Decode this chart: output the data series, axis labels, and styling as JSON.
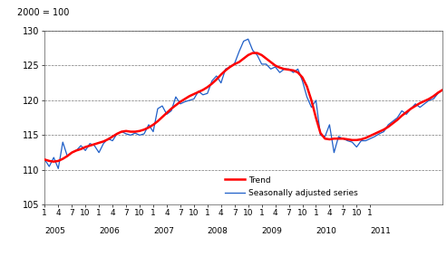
{
  "title": "2000 = 100",
  "ylim": [
    105,
    130
  ],
  "yticks": [
    105,
    110,
    115,
    120,
    125,
    130
  ],
  "trend_color": "#ff0000",
  "seasonal_color": "#1f5fc8",
  "trend_linewidth": 1.8,
  "seasonal_linewidth": 0.9,
  "legend_trend": "Trend",
  "legend_seasonal": "Seasonally adjusted series",
  "background_color": "#ffffff",
  "grid_color": "#555555",
  "trend": [
    111.5,
    111.3,
    111.2,
    111.3,
    111.6,
    112.0,
    112.5,
    112.8,
    113.0,
    113.3,
    113.5,
    113.7,
    113.9,
    114.1,
    114.4,
    114.8,
    115.2,
    115.5,
    115.6,
    115.5,
    115.5,
    115.6,
    115.8,
    116.1,
    116.5,
    117.0,
    117.6,
    118.2,
    118.8,
    119.3,
    119.8,
    120.2,
    120.6,
    120.9,
    121.2,
    121.5,
    121.9,
    122.4,
    123.0,
    123.7,
    124.3,
    124.8,
    125.2,
    125.5,
    126.0,
    126.5,
    126.8,
    126.8,
    126.5,
    126.0,
    125.5,
    125.0,
    124.7,
    124.5,
    124.4,
    124.3,
    124.0,
    123.3,
    122.0,
    120.0,
    117.5,
    115.3,
    114.5,
    114.4,
    114.5,
    114.5,
    114.5,
    114.4,
    114.3,
    114.3,
    114.4,
    114.6,
    114.9,
    115.2,
    115.5,
    115.8,
    116.2,
    116.7,
    117.2,
    117.8,
    118.3,
    118.8,
    119.2,
    119.6,
    119.9,
    120.2,
    120.6,
    121.1,
    121.5
  ],
  "seasonal": [
    111.5,
    110.5,
    111.8,
    110.2,
    114.0,
    112.0,
    112.5,
    112.8,
    113.5,
    112.8,
    113.8,
    113.5,
    112.5,
    113.8,
    114.5,
    114.2,
    115.2,
    115.5,
    115.2,
    115.0,
    115.3,
    115.0,
    115.2,
    116.5,
    115.5,
    118.8,
    119.2,
    118.0,
    118.5,
    120.5,
    119.5,
    119.8,
    120.0,
    120.2,
    121.3,
    120.8,
    121.0,
    122.8,
    123.5,
    122.5,
    124.5,
    124.8,
    125.3,
    127.0,
    128.5,
    128.8,
    127.2,
    126.5,
    125.2,
    125.2,
    124.5,
    124.8,
    124.0,
    124.5,
    124.5,
    124.0,
    124.5,
    122.8,
    120.5,
    119.0,
    120.0,
    115.0,
    114.8,
    116.5,
    112.5,
    114.8,
    114.5,
    114.2,
    114.0,
    113.3,
    114.2,
    114.2,
    114.5,
    114.8,
    115.2,
    115.5,
    116.5,
    117.0,
    117.5,
    118.5,
    118.0,
    118.8,
    119.5,
    119.0,
    119.5,
    120.0,
    120.2,
    121.0,
    121.5
  ]
}
